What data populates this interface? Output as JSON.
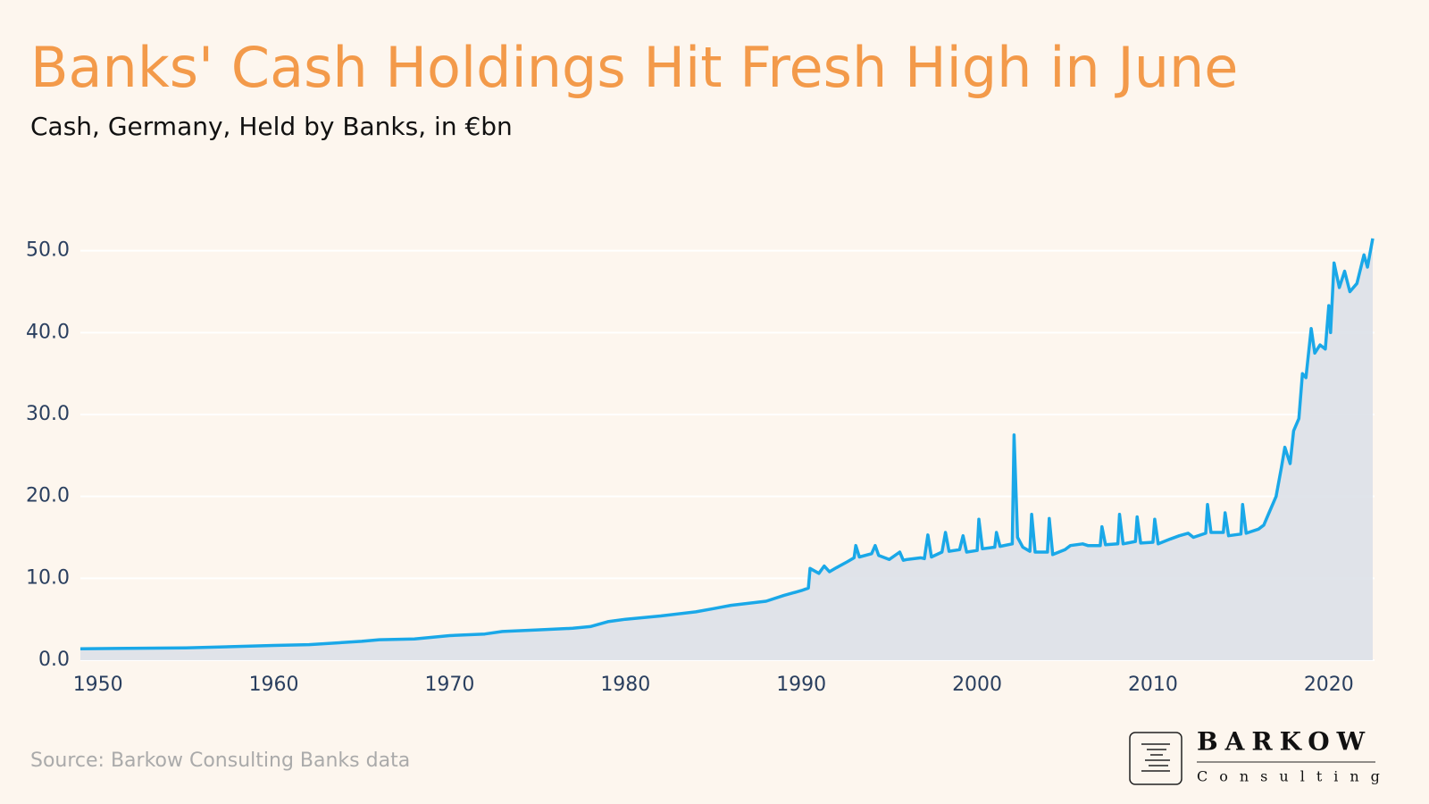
{
  "chart_data": {
    "type": "area-line",
    "title": "Banks' Cash Holdings Hit Fresh High in June",
    "subtitle": "Cash, Germany, Held by Banks, in €bn",
    "source": "Source: Barkow Consulting Banks data",
    "logo": {
      "name": "BARKOW",
      "tagline": "Consulting"
    },
    "color": "#1aa8e8",
    "fill_color": "#dde1e8",
    "grid": true,
    "xlim": [
      1949,
      2022.6
    ],
    "ylim": [
      0,
      54
    ],
    "xticks": [
      1950,
      1960,
      1970,
      1980,
      1990,
      2000,
      2010,
      2020
    ],
    "yticks": [
      {
        "value": 0,
        "label": "0.0"
      },
      {
        "value": 10,
        "label": "10.0"
      },
      {
        "value": 20,
        "label": "20.0"
      },
      {
        "value": 30,
        "label": "30.0"
      },
      {
        "value": 40,
        "label": "40.0"
      },
      {
        "value": 50,
        "label": "50.0"
      }
    ],
    "x": [
      1949,
      1955,
      1960,
      1962,
      1965,
      1966,
      1968,
      1970,
      1972,
      1973,
      1975,
      1977,
      1978,
      1979,
      1980,
      1982,
      1984,
      1985,
      1986,
      1988,
      1989,
      1990,
      1990.4,
      1990.5,
      1991,
      1991.3,
      1991.6,
      1992,
      1992.6,
      1993,
      1993.1,
      1993.3,
      1994,
      1994.2,
      1994.4,
      1995,
      1995.6,
      1995.8,
      1996,
      1996.8,
      1997,
      1997.2,
      1997.4,
      1998,
      1998.2,
      1998.4,
      1999,
      1999.2,
      1999.4,
      2000,
      2000.1,
      2000.3,
      2001,
      2001.1,
      2001.3,
      2002,
      2002.1,
      2002.3,
      2002.6,
      2003,
      2003.1,
      2003.3,
      2004,
      2004.1,
      2004.3,
      2005,
      2005.3,
      2006,
      2006.3,
      2007,
      2007.1,
      2007.3,
      2008,
      2008.1,
      2008.3,
      2009,
      2009.1,
      2009.3,
      2010,
      2010.1,
      2010.3,
      2011,
      2011.5,
      2012,
      2012.3,
      2013,
      2013.1,
      2013.3,
      2014,
      2014.1,
      2014.3,
      2015,
      2015.1,
      2015.3,
      2016,
      2016.3,
      2016.6,
      2017,
      2017.3,
      2017.5,
      2017.8,
      2018,
      2018.3,
      2018.5,
      2018.7,
      2019,
      2019.2,
      2019.5,
      2019.8,
      2020,
      2020.1,
      2020.3,
      2020.6,
      2020.9,
      2021.2,
      2021.6,
      2022,
      2022.2,
      2022.5
    ],
    "values": [
      1.4,
      1.5,
      1.8,
      1.9,
      2.3,
      2.5,
      2.6,
      3.0,
      3.2,
      3.5,
      3.7,
      3.9,
      4.1,
      4.7,
      5.0,
      5.4,
      5.9,
      6.3,
      6.7,
      7.2,
      7.9,
      8.5,
      8.8,
      11.2,
      10.6,
      11.5,
      10.8,
      11.3,
      12.0,
      12.5,
      14.0,
      12.6,
      13.0,
      14.0,
      12.8,
      12.3,
      13.2,
      12.2,
      12.3,
      12.5,
      12.4,
      15.3,
      12.6,
      13.2,
      15.6,
      13.3,
      13.5,
      15.2,
      13.2,
      13.4,
      17.2,
      13.6,
      13.8,
      15.6,
      13.9,
      14.2,
      27.5,
      15.0,
      13.8,
      13.3,
      17.8,
      13.2,
      13.2,
      17.3,
      12.9,
      13.5,
      14.0,
      14.2,
      14.0,
      14.0,
      16.3,
      14.1,
      14.2,
      17.8,
      14.2,
      14.5,
      17.5,
      14.3,
      14.4,
      17.2,
      14.2,
      14.8,
      15.2,
      15.5,
      15.0,
      15.5,
      19.0,
      15.6,
      15.6,
      18.0,
      15.2,
      15.4,
      19.0,
      15.5,
      16.0,
      16.5,
      18.0,
      20.0,
      23.5,
      26.0,
      24.0,
      28.0,
      29.5,
      35.0,
      34.5,
      40.5,
      37.5,
      38.5,
      38.0,
      43.3,
      40.0,
      48.5,
      45.5,
      47.5,
      45.0,
      46.0,
      49.5,
      48.0,
      51.5
    ]
  }
}
